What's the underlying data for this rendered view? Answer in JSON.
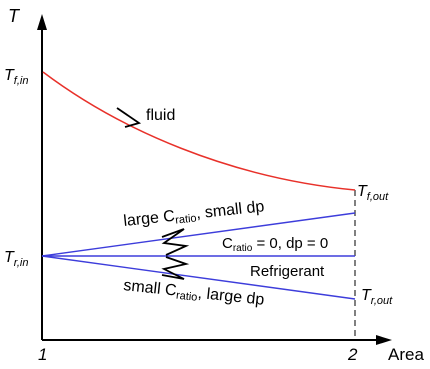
{
  "axes": {
    "y_label": "T",
    "x_label": "Area",
    "x_ticks": [
      "1",
      "2"
    ]
  },
  "temperatures": {
    "fluid_in": {
      "base": "T",
      "sub": "f,in"
    },
    "fluid_out": {
      "base": "T",
      "sub": "f,out"
    },
    "refrigerant_in": {
      "base": "T",
      "sub": "r,in"
    },
    "refrigerant_out": {
      "base": "T",
      "sub": "r,out"
    }
  },
  "labels": {
    "fluid": "fluid",
    "refrigerant": "Refrigerant",
    "upper_line": {
      "pre": "large C",
      "sub": "ratio",
      "post": ", small dp"
    },
    "middle_line": {
      "pre": "C",
      "sub": "ratio",
      "post": " = 0, dp = 0"
    },
    "lower_line": {
      "pre": "small C",
      "sub": "ratio",
      "post": ", large dp"
    }
  },
  "colors": {
    "fluid_curve": "#e8312a",
    "refrigerant_lines": "#3d3ddb",
    "axes": "#000000"
  }
}
